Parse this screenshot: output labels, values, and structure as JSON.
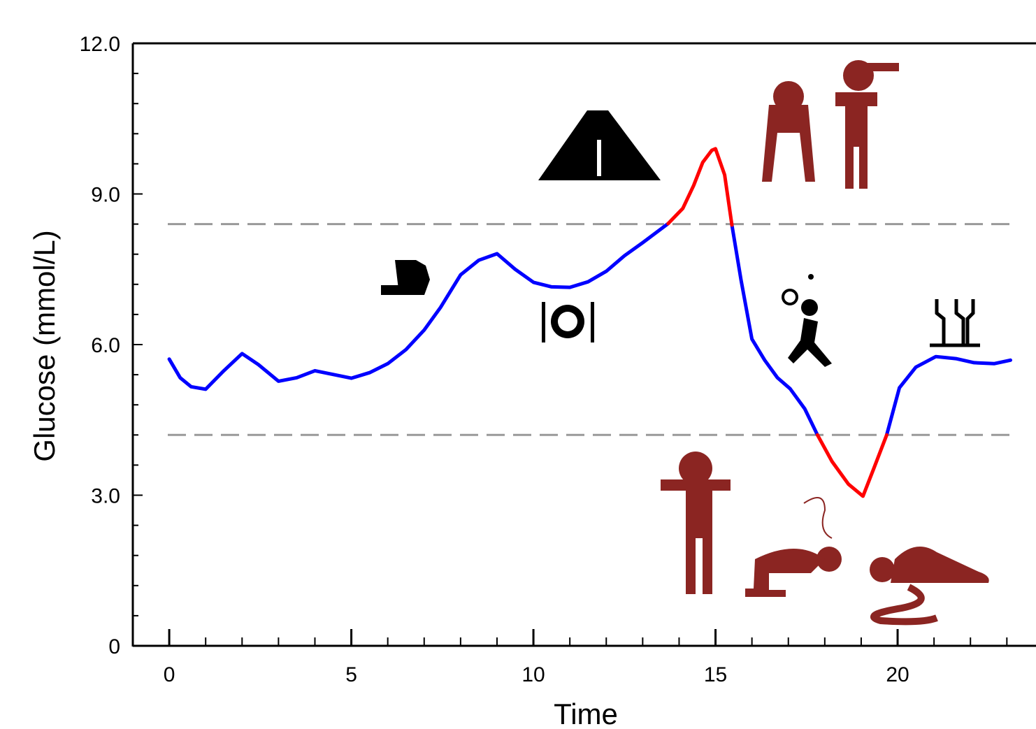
{
  "chart_data": {
    "type": "line",
    "xlabel": "Time",
    "ylabel": "Glucose (mmol/L)",
    "x": [
      0,
      0.3,
      0.6,
      1.0,
      1.5,
      2.0,
      2.45,
      3.0,
      3.5,
      4.0,
      5.0,
      5.5,
      6.0,
      6.5,
      7.0,
      7.45,
      8.0,
      8.5,
      9.0,
      9.5,
      10.0,
      10.5,
      11.0,
      11.5,
      12.0,
      12.5,
      13.0,
      13.7,
      14.1,
      14.4,
      14.65,
      14.9,
      15.0,
      15.25,
      15.45,
      15.7,
      16.0,
      16.35,
      16.7,
      17.05,
      17.45,
      17.8,
      18.2,
      18.65,
      19.05,
      19.35,
      19.7,
      20.05,
      20.5,
      21.05,
      21.6,
      22.1,
      22.65,
      23.1
    ],
    "series": [
      {
        "color": "#0000ff",
        "values": [
          5.71,
          5.34,
          5.16,
          5.11,
          5.48,
          5.82,
          5.6,
          5.27,
          5.34,
          5.48,
          5.33,
          5.44,
          5.62,
          5.9,
          6.29,
          6.74,
          7.39,
          7.68,
          7.81,
          7.5,
          7.24,
          7.15,
          7.14,
          7.25,
          7.46,
          7.77,
          8.03,
          8.41,
          null,
          null,
          null,
          null,
          null,
          null,
          8.38,
          7.29,
          6.11,
          5.69,
          5.34,
          5.12,
          4.72,
          4.2,
          null,
          null,
          null,
          null,
          4.2,
          5.14,
          5.55,
          5.76,
          5.72,
          5.64,
          5.62,
          5.69
        ]
      },
      {
        "color": "#ff0000",
        "values": [
          null,
          null,
          null,
          null,
          null,
          null,
          null,
          null,
          null,
          null,
          null,
          null,
          null,
          null,
          null,
          null,
          null,
          null,
          null,
          null,
          null,
          null,
          null,
          null,
          null,
          null,
          null,
          8.41,
          8.71,
          9.17,
          9.63,
          9.87,
          9.9,
          9.38,
          8.38,
          null,
          null,
          null,
          null,
          null,
          null,
          4.2,
          3.67,
          3.22,
          2.98,
          3.54,
          4.2,
          null,
          null,
          null,
          null,
          null,
          null,
          null
        ]
      }
    ],
    "hlines": [
      8.4,
      4.2
    ],
    "hline_color": "#999999",
    "xlim": [
      -1,
      23.8
    ],
    "ylim": [
      0,
      12
    ],
    "xticks": [
      0,
      5,
      10,
      15,
      20
    ],
    "xminorticks": [
      1,
      2,
      3,
      4,
      6,
      7,
      8,
      9,
      11,
      12,
      13,
      14,
      16,
      17,
      18,
      19,
      21,
      22,
      23
    ],
    "yticks": [
      0,
      {
        "value": 3,
        "label": "3.0"
      },
      {
        "value": 6,
        "label": "6.0"
      },
      {
        "value": 9,
        "label": "9.0"
      },
      {
        "value": 12,
        "label": "12.0"
      }
    ],
    "yminorticks": [
      0.6,
      1.2,
      1.8,
      2.4,
      3.6,
      4.2,
      4.8,
      5.4,
      6.6,
      7.2,
      7.8,
      8.4,
      9.6,
      10.2,
      10.8,
      11.4
    ]
  }
}
